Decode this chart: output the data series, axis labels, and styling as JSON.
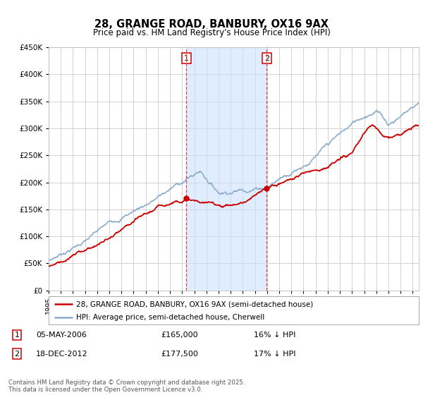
{
  "title": "28, GRANGE ROAD, BANBURY, OX16 9AX",
  "subtitle": "Price paid vs. HM Land Registry's House Price Index (HPI)",
  "legend_line1": "28, GRANGE ROAD, BANBURY, OX16 9AX (semi-detached house)",
  "legend_line2": "HPI: Average price, semi-detached house, Cherwell",
  "annotation1_date": "05-MAY-2006",
  "annotation1_price": "£165,000",
  "annotation1_hpi": "16% ↓ HPI",
  "annotation2_date": "18-DEC-2012",
  "annotation2_price": "£177,500",
  "annotation2_hpi": "17% ↓ HPI",
  "footnote": "Contains HM Land Registry data © Crown copyright and database right 2025.\nThis data is licensed under the Open Government Licence v3.0.",
  "red_color": "#cc0000",
  "blue_color": "#88aacc",
  "vline_color": "#dd4444",
  "shade_color": "#cce0ff",
  "background_color": "#ffffff",
  "plot_bg_color": "#ffffff",
  "grid_color": "#cccccc",
  "ylim_min": 0,
  "ylim_max": 450000,
  "sale1_year": 2006.35,
  "sale1_price": 165000,
  "sale2_year": 2012.97,
  "sale2_price": 177500,
  "xmin": 1995,
  "xmax": 2025.5
}
